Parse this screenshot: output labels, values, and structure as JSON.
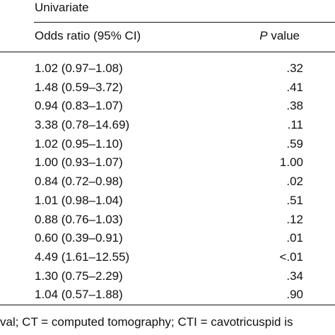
{
  "table": {
    "group_title": "Univariate",
    "headers": {
      "odds_ratio": "Odds ratio (95% CI)",
      "p_letter": "P",
      "p_rest": " value"
    },
    "rows": [
      {
        "or": "1.02 (0.97–1.08)",
        "p": ".32"
      },
      {
        "or": "1.48 (0.59–3.72)",
        "p": ".41"
      },
      {
        "or": "0.94 (0.83–1.07)",
        "p": ".38"
      },
      {
        "or": "3.38 (0.78–14.69)",
        "p": ".11"
      },
      {
        "or": "1.02 (0.95–1.10)",
        "p": ".59"
      },
      {
        "or": "1.00 (0.93–1.07)",
        "p": "1.00"
      },
      {
        "or": "0.84 (0.72–0.98)",
        "p": ".02"
      },
      {
        "or": "1.01 (0.98–1.04)",
        "p": ".51"
      },
      {
        "or": "0.88 (0.76–1.03)",
        "p": ".12"
      },
      {
        "or": "0.60 (0.39–0.91)",
        "p": ".01"
      },
      {
        "or": "4.49 (1.61–12.55)",
        "p": "<.01"
      },
      {
        "or": "1.30 (0.75–2.29)",
        "p": ".34"
      },
      {
        "or": "1.04 (0.57–1.88)",
        "p": ".90"
      }
    ],
    "footnote": "val; CT = computed tomography; CTI = cavotricuspid is"
  }
}
